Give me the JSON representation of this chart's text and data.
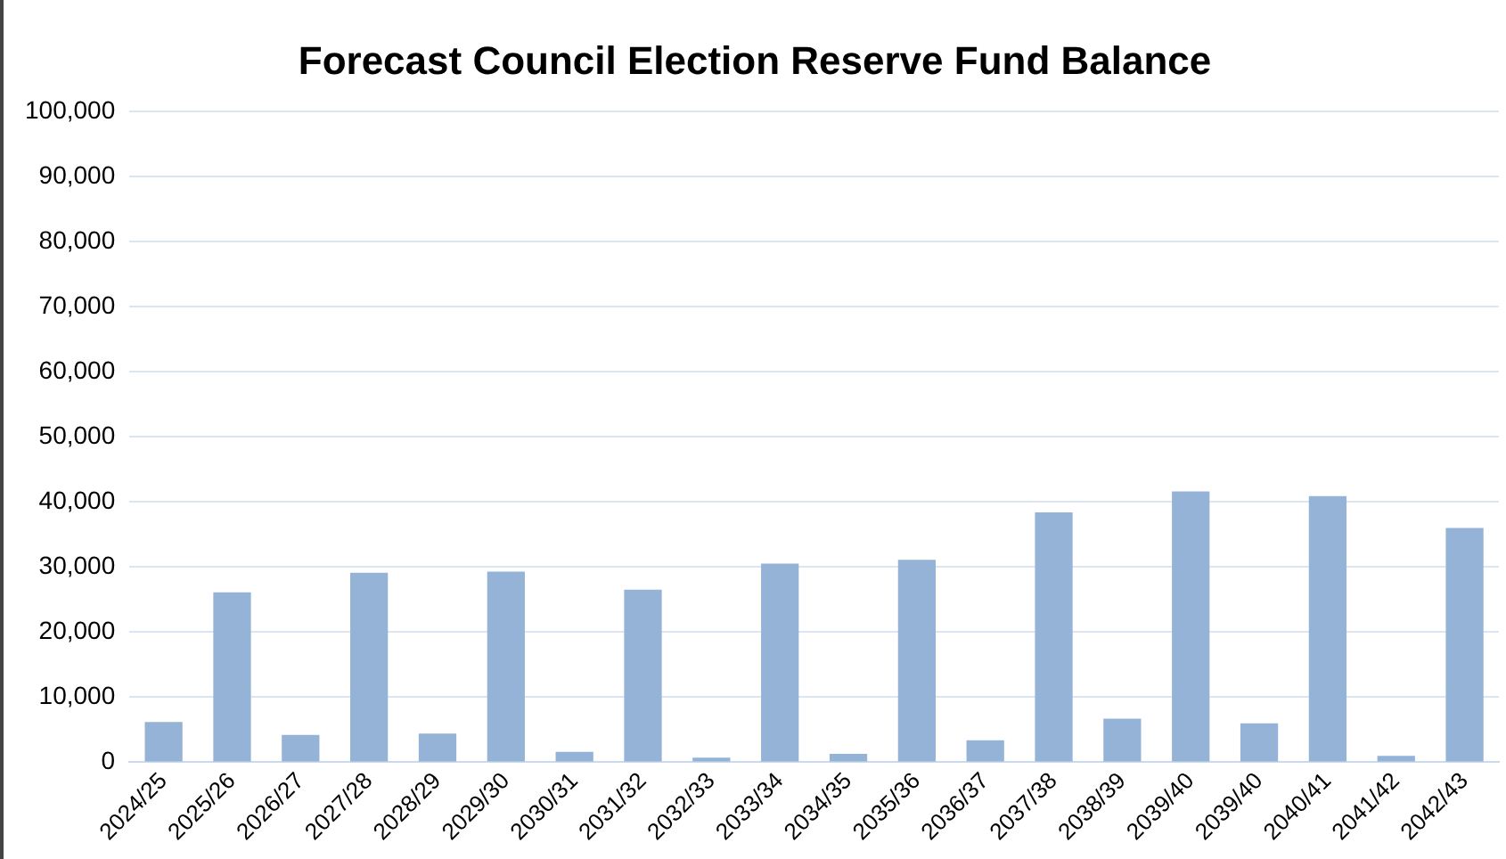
{
  "chart_data": {
    "type": "bar",
    "title": "Forecast Council Election Reserve Fund Balance",
    "categories": [
      "2024/25",
      "2025/26",
      "2026/27",
      "2027/28",
      "2028/29",
      "2029/30",
      "2030/31",
      "2031/32",
      "2032/33",
      "2033/34",
      "2034/35",
      "2035/36",
      "2036/37",
      "2037/38",
      "2038/39",
      "2039/40",
      "2039/40",
      "2040/41",
      "2041/42",
      "2042/43"
    ],
    "values": [
      6200,
      26100,
      4200,
      29100,
      4400,
      29300,
      1600,
      26500,
      700,
      30500,
      1300,
      31100,
      3400,
      38400,
      6700,
      41600,
      6000,
      40900,
      1000,
      36000
    ],
    "color": "#95b3d7",
    "ylim": [
      0,
      100000
    ],
    "yticks": [
      0,
      {
        "value": 10000,
        "label": "10,000"
      },
      {
        "value": 20000,
        "label": "20,000"
      },
      {
        "value": 30000,
        "label": "30,000"
      },
      {
        "value": 40000,
        "label": "40,000"
      },
      {
        "value": 50000,
        "label": "50,000"
      },
      {
        "value": 60000,
        "label": "60,000"
      },
      {
        "value": 70000,
        "label": "70,000"
      },
      {
        "value": 80000,
        "label": "80,000"
      },
      {
        "value": 90000,
        "label": "90,000"
      },
      {
        "value": 100000,
        "label": "100,000"
      }
    ],
    "grid": "y",
    "legend": false
  }
}
